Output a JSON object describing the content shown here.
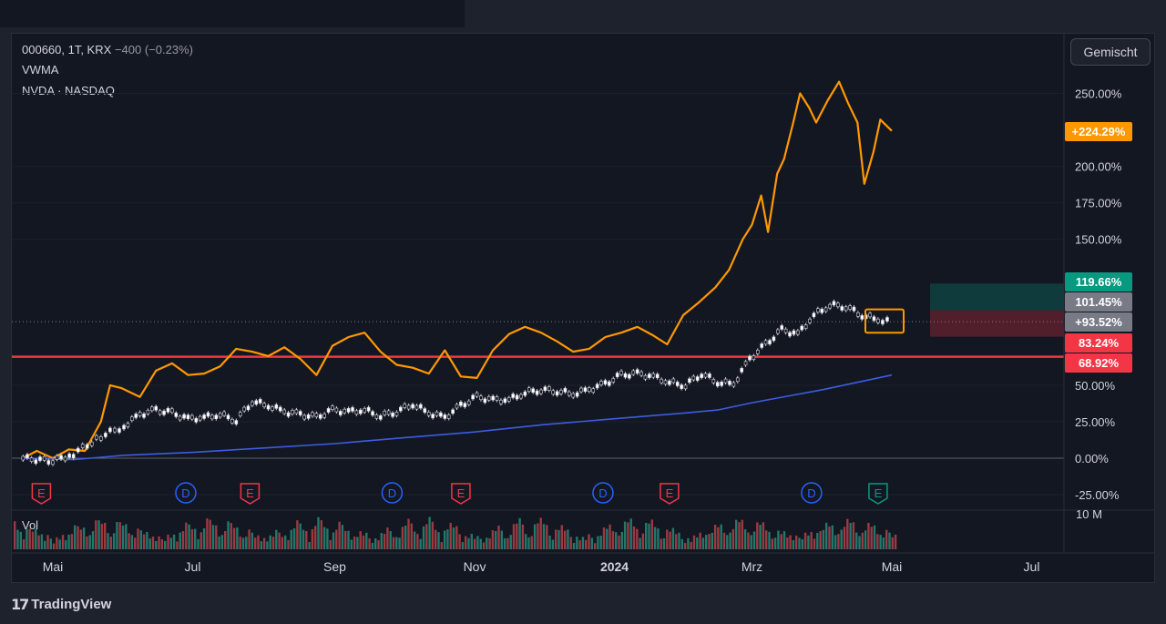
{
  "header": {
    "symbol_line": "000660, 1T, KRX",
    "symbol_change": "−400 (−0.23%)",
    "indicator": "VWMA",
    "compare": "NVDA · NASDAQ",
    "mode_button": "Gemischt",
    "volume_label": "Vol",
    "volume_axis": "10 M",
    "brand": "TradingView",
    "brand_logo": "17"
  },
  "chart_data": {
    "type": "line",
    "y_unit": "%",
    "ylim": [
      -30,
      265
    ],
    "x_range": [
      "2023-04-18",
      "2024-07-31"
    ],
    "x_ticks": [
      {
        "label": "Mai",
        "date": "2023-05-01"
      },
      {
        "label": "Jul",
        "date": "2023-07-01"
      },
      {
        "label": "Sep",
        "date": "2023-09-01"
      },
      {
        "label": "Nov",
        "date": "2023-11-01"
      },
      {
        "label": "2024",
        "date": "2024-01-01"
      },
      {
        "label": "Mrz",
        "date": "2024-03-01"
      },
      {
        "label": "Mai",
        "date": "2024-05-01"
      },
      {
        "label": "Jul",
        "date": "2024-07-01"
      }
    ],
    "y_ticks": [
      {
        "v": 250,
        "label": "250.00%"
      },
      {
        "v": 200,
        "label": "200.00%"
      },
      {
        "v": 175,
        "label": "175.00%"
      },
      {
        "v": 150,
        "label": "150.00%"
      },
      {
        "v": 50,
        "label": "50.00%"
      },
      {
        "v": 25,
        "label": "25.00%"
      },
      {
        "v": 0,
        "label": "0.00%"
      },
      {
        "v": -25,
        "label": "-25.00%"
      }
    ],
    "series": [
      {
        "name": "NVDA · NASDAQ",
        "color": "#ff9800",
        "points": [
          [
            "2023-04-18",
            0
          ],
          [
            "2023-04-24",
            5
          ],
          [
            "2023-05-01",
            0
          ],
          [
            "2023-05-08",
            6
          ],
          [
            "2023-05-15",
            5
          ],
          [
            "2023-05-22",
            25
          ],
          [
            "2023-05-26",
            50
          ],
          [
            "2023-05-31",
            48
          ],
          [
            "2023-06-08",
            42
          ],
          [
            "2023-06-15",
            60
          ],
          [
            "2023-06-22",
            65
          ],
          [
            "2023-06-29",
            57
          ],
          [
            "2023-07-06",
            58
          ],
          [
            "2023-07-13",
            63
          ],
          [
            "2023-07-20",
            75
          ],
          [
            "2023-07-27",
            73
          ],
          [
            "2023-08-03",
            70
          ],
          [
            "2023-08-10",
            76
          ],
          [
            "2023-08-17",
            68
          ],
          [
            "2023-08-24",
            57
          ],
          [
            "2023-08-31",
            77
          ],
          [
            "2023-09-07",
            83
          ],
          [
            "2023-09-14",
            86
          ],
          [
            "2023-09-21",
            73
          ],
          [
            "2023-09-28",
            64
          ],
          [
            "2023-10-05",
            62
          ],
          [
            "2023-10-12",
            58
          ],
          [
            "2023-10-19",
            74
          ],
          [
            "2023-10-26",
            56
          ],
          [
            "2023-11-02",
            55
          ],
          [
            "2023-11-09",
            74
          ],
          [
            "2023-11-16",
            85
          ],
          [
            "2023-11-23",
            90
          ],
          [
            "2023-11-30",
            86
          ],
          [
            "2023-12-07",
            80
          ],
          [
            "2023-12-14",
            73
          ],
          [
            "2023-12-21",
            75
          ],
          [
            "2023-12-28",
            83
          ],
          [
            "2024-01-04",
            86
          ],
          [
            "2024-01-11",
            90
          ],
          [
            "2024-01-18",
            84
          ],
          [
            "2024-01-24",
            78
          ],
          [
            "2024-01-31",
            98
          ],
          [
            "2024-02-07",
            107
          ],
          [
            "2024-02-14",
            117
          ],
          [
            "2024-02-20",
            129
          ],
          [
            "2024-02-26",
            150
          ],
          [
            "2024-03-01",
            160
          ],
          [
            "2024-03-05",
            180
          ],
          [
            "2024-03-08",
            155
          ],
          [
            "2024-03-12",
            195
          ],
          [
            "2024-03-15",
            205
          ],
          [
            "2024-03-19",
            230
          ],
          [
            "2024-03-22",
            250
          ],
          [
            "2024-03-26",
            240
          ],
          [
            "2024-03-29",
            230
          ],
          [
            "2024-04-03",
            245
          ],
          [
            "2024-04-08",
            258
          ],
          [
            "2024-04-12",
            243
          ],
          [
            "2024-04-16",
            230
          ],
          [
            "2024-04-19",
            188
          ],
          [
            "2024-04-23",
            210
          ],
          [
            "2024-04-26",
            232
          ],
          [
            "2024-05-01",
            224.29
          ]
        ]
      },
      {
        "name": "VWMA",
        "color": "#3d5ce0",
        "points": [
          [
            "2023-04-18",
            0
          ],
          [
            "2023-05-10",
            -1
          ],
          [
            "2023-06-01",
            2
          ],
          [
            "2023-07-01",
            4
          ],
          [
            "2023-08-01",
            7
          ],
          [
            "2023-09-01",
            10
          ],
          [
            "2023-10-01",
            14
          ],
          [
            "2023-11-01",
            18
          ],
          [
            "2023-12-01",
            23
          ],
          [
            "2024-01-01",
            27
          ],
          [
            "2024-02-01",
            31
          ],
          [
            "2024-02-15",
            33
          ],
          [
            "2024-03-01",
            38
          ],
          [
            "2024-04-01",
            47
          ],
          [
            "2024-05-01",
            57
          ]
        ]
      },
      {
        "name": "000660, 1T, KRX",
        "color": "#ffffff",
        "points": [
          [
            "2023-04-18",
            0
          ],
          [
            "2023-05-01",
            -2
          ],
          [
            "2023-05-10",
            3
          ],
          [
            "2023-05-22",
            15
          ],
          [
            "2023-06-01",
            22
          ],
          [
            "2023-06-08",
            30
          ],
          [
            "2023-06-15",
            33
          ],
          [
            "2023-06-22",
            31
          ],
          [
            "2023-06-29",
            27
          ],
          [
            "2023-07-06",
            28
          ],
          [
            "2023-07-13",
            30
          ],
          [
            "2023-07-20",
            26
          ],
          [
            "2023-07-27",
            39
          ],
          [
            "2023-08-03",
            36
          ],
          [
            "2023-08-10",
            32
          ],
          [
            "2023-08-17",
            30
          ],
          [
            "2023-08-24",
            28
          ],
          [
            "2023-08-31",
            33
          ],
          [
            "2023-09-07",
            32
          ],
          [
            "2023-09-14",
            33
          ],
          [
            "2023-09-21",
            29
          ],
          [
            "2023-09-28",
            32
          ],
          [
            "2023-10-05",
            37
          ],
          [
            "2023-10-12",
            31
          ],
          [
            "2023-10-19",
            28
          ],
          [
            "2023-10-26",
            36
          ],
          [
            "2023-11-02",
            42
          ],
          [
            "2023-11-09",
            40
          ],
          [
            "2023-11-16",
            40
          ],
          [
            "2023-11-23",
            45
          ],
          [
            "2023-11-30",
            47
          ],
          [
            "2023-12-07",
            46
          ],
          [
            "2023-12-14",
            44
          ],
          [
            "2023-12-21",
            47
          ],
          [
            "2023-12-28",
            51
          ],
          [
            "2024-01-04",
            57
          ],
          [
            "2024-01-11",
            58
          ],
          [
            "2024-01-18",
            56
          ],
          [
            "2024-01-25",
            52
          ],
          [
            "2024-02-01",
            50
          ],
          [
            "2024-02-08",
            58
          ],
          [
            "2024-02-15",
            52
          ],
          [
            "2024-02-22",
            51
          ],
          [
            "2024-02-29",
            68
          ],
          [
            "2024-03-07",
            78
          ],
          [
            "2024-03-14",
            88
          ],
          [
            "2024-03-21",
            85
          ],
          [
            "2024-03-28",
            98
          ],
          [
            "2024-04-04",
            105
          ],
          [
            "2024-04-11",
            104
          ],
          [
            "2024-04-18",
            98
          ],
          [
            "2024-04-25",
            95
          ],
          [
            "2024-05-01",
            93.52
          ]
        ]
      }
    ],
    "horizontal_line": {
      "value": 69.5,
      "color": "#f23645"
    },
    "price_labels": [
      {
        "text": "+224.29%",
        "v": 224.29,
        "bg": "#ff9800"
      },
      {
        "text": "119.66%",
        "v": 119.66,
        "bg": "#089981"
      },
      {
        "text": "101.45%",
        "v": 101.45,
        "bg": "#787b86"
      },
      {
        "text": "+93.52%",
        "v": 93.52,
        "bg": "#787b86"
      },
      {
        "text": "83.24%",
        "v": 83.24,
        "bg": "#f23645"
      },
      {
        "text": "68.92%",
        "v": 68.92,
        "bg": "#f23645"
      }
    ],
    "events": [
      {
        "type": "E",
        "date": "2023-04-26",
        "color": "#f23645"
      },
      {
        "type": "D",
        "date": "2023-06-28",
        "color": "#2962ff"
      },
      {
        "type": "E",
        "date": "2023-07-26",
        "color": "#f23645"
      },
      {
        "type": "D",
        "date": "2023-09-26",
        "color": "#2962ff"
      },
      {
        "type": "E",
        "date": "2023-10-26",
        "color": "#f23645"
      },
      {
        "type": "D",
        "date": "2023-12-27",
        "color": "#2962ff"
      },
      {
        "type": "E",
        "date": "2024-01-25",
        "color": "#f23645"
      },
      {
        "type": "D",
        "date": "2024-03-27",
        "color": "#2962ff"
      },
      {
        "type": "E",
        "date": "2024-04-25",
        "color": "#089981"
      }
    ]
  }
}
